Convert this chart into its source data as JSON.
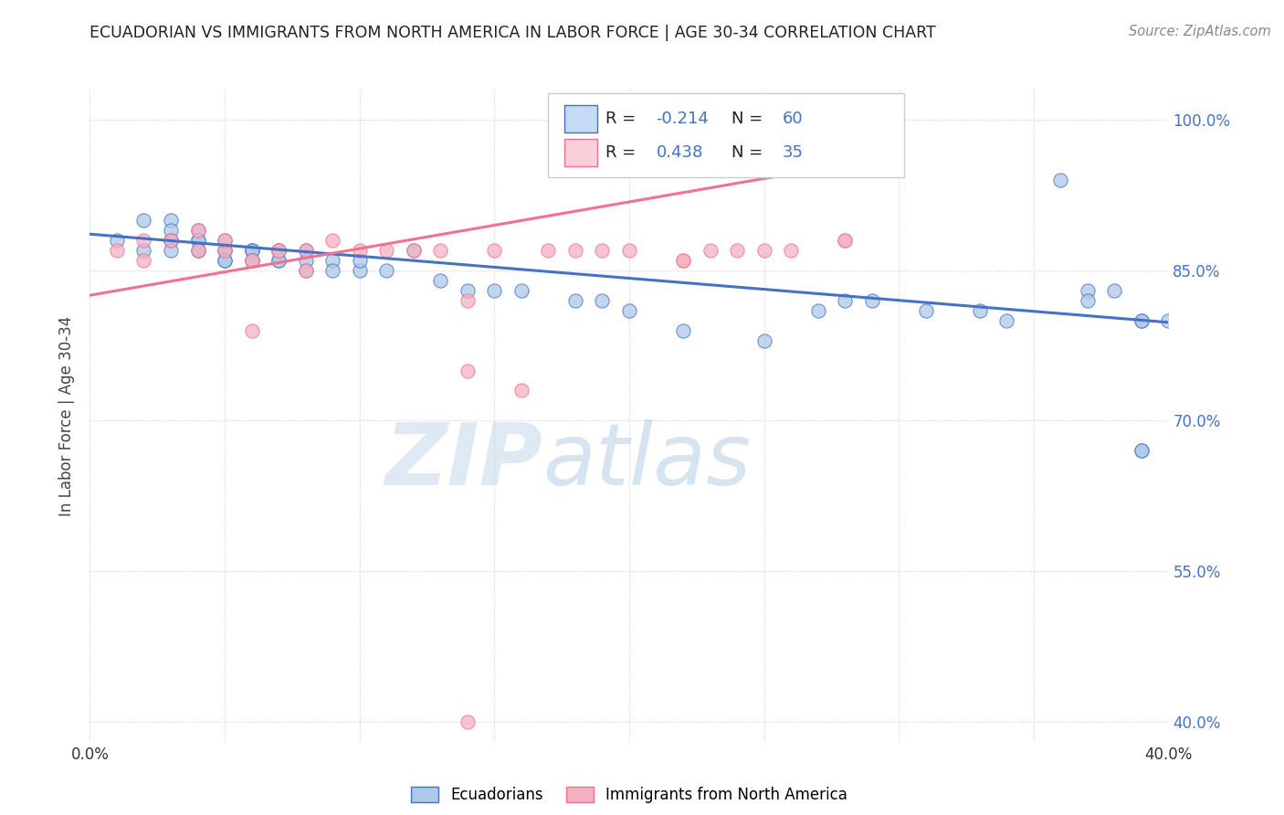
{
  "title": "ECUADORIAN VS IMMIGRANTS FROM NORTH AMERICA IN LABOR FORCE | AGE 30-34 CORRELATION CHART",
  "source_text": "Source: ZipAtlas.com",
  "ylabel": "In Labor Force | Age 30-34",
  "watermark_zip": "ZIP",
  "watermark_atlas": "atlas",
  "xlim": [
    0.0,
    0.4
  ],
  "ylim": [
    0.38,
    1.03
  ],
  "yticks": [
    0.4,
    0.55,
    0.7,
    0.85,
    1.0
  ],
  "ytick_labels": [
    "40.0%",
    "55.0%",
    "70.0%",
    "85.0%",
    "100.0%"
  ],
  "xticks": [
    0.0,
    0.05,
    0.1,
    0.15,
    0.2,
    0.25,
    0.3,
    0.35,
    0.4
  ],
  "xtick_labels": [
    "0.0%",
    "",
    "",
    "",
    "",
    "",
    "",
    "",
    "40.0%"
  ],
  "blue_R": -0.214,
  "blue_N": 60,
  "pink_R": 0.438,
  "pink_N": 35,
  "blue_color": "#adc8e8",
  "pink_color": "#f5b0c0",
  "blue_line_color": "#4472c4",
  "pink_line_color": "#f47090",
  "legend_box_blue": "#c5daf5",
  "legend_box_pink": "#f9d0da",
  "legend_blue_border": "#4472c4",
  "legend_pink_border": "#f47090",
  "grid_color": "#d0d0d0",
  "background_color": "#ffffff",
  "right_label_color": "#4472c4",
  "blue_scatter_x": [
    0.01,
    0.02,
    0.02,
    0.03,
    0.03,
    0.03,
    0.03,
    0.03,
    0.04,
    0.04,
    0.04,
    0.04,
    0.04,
    0.05,
    0.05,
    0.05,
    0.05,
    0.05,
    0.06,
    0.06,
    0.06,
    0.06,
    0.06,
    0.07,
    0.07,
    0.07,
    0.07,
    0.08,
    0.08,
    0.08,
    0.09,
    0.09,
    0.1,
    0.1,
    0.11,
    0.12,
    0.13,
    0.14,
    0.15,
    0.16,
    0.18,
    0.19,
    0.2,
    0.22,
    0.25,
    0.27,
    0.28,
    0.29,
    0.31,
    0.33,
    0.34,
    0.36,
    0.37,
    0.37,
    0.38,
    0.39,
    0.39,
    0.39,
    0.39,
    0.4
  ],
  "blue_scatter_y": [
    0.88,
    0.87,
    0.9,
    0.88,
    0.9,
    0.89,
    0.88,
    0.87,
    0.89,
    0.88,
    0.88,
    0.87,
    0.87,
    0.88,
    0.87,
    0.87,
    0.86,
    0.86,
    0.87,
    0.87,
    0.87,
    0.86,
    0.86,
    0.87,
    0.87,
    0.86,
    0.86,
    0.87,
    0.86,
    0.85,
    0.86,
    0.85,
    0.85,
    0.86,
    0.85,
    0.87,
    0.84,
    0.83,
    0.83,
    0.83,
    0.82,
    0.82,
    0.81,
    0.79,
    0.78,
    0.81,
    0.82,
    0.82,
    0.81,
    0.81,
    0.8,
    0.94,
    0.83,
    0.82,
    0.83,
    0.8,
    0.8,
    0.67,
    0.67,
    0.8
  ],
  "pink_scatter_x": [
    0.01,
    0.02,
    0.02,
    0.03,
    0.04,
    0.04,
    0.05,
    0.05,
    0.06,
    0.06,
    0.07,
    0.07,
    0.08,
    0.08,
    0.09,
    0.1,
    0.11,
    0.12,
    0.13,
    0.15,
    0.16,
    0.17,
    0.18,
    0.19,
    0.2,
    0.22,
    0.22,
    0.23,
    0.24,
    0.25,
    0.26,
    0.28,
    0.28,
    0.14,
    0.14
  ],
  "pink_scatter_y": [
    0.87,
    0.88,
    0.86,
    0.88,
    0.87,
    0.89,
    0.87,
    0.88,
    0.86,
    0.79,
    0.87,
    0.87,
    0.87,
    0.85,
    0.88,
    0.87,
    0.87,
    0.87,
    0.87,
    0.87,
    0.73,
    0.87,
    0.87,
    0.87,
    0.87,
    0.86,
    0.86,
    0.87,
    0.87,
    0.87,
    0.87,
    0.88,
    0.88,
    0.82,
    0.75
  ],
  "pink_outlier_x": [
    0.14
  ],
  "pink_outlier_y": [
    0.4
  ],
  "blue_trend_x": [
    0.0,
    0.4
  ],
  "blue_trend_y": [
    0.886,
    0.798
  ],
  "pink_trend_x": [
    0.0,
    0.29
  ],
  "pink_trend_y": [
    0.825,
    0.96
  ]
}
